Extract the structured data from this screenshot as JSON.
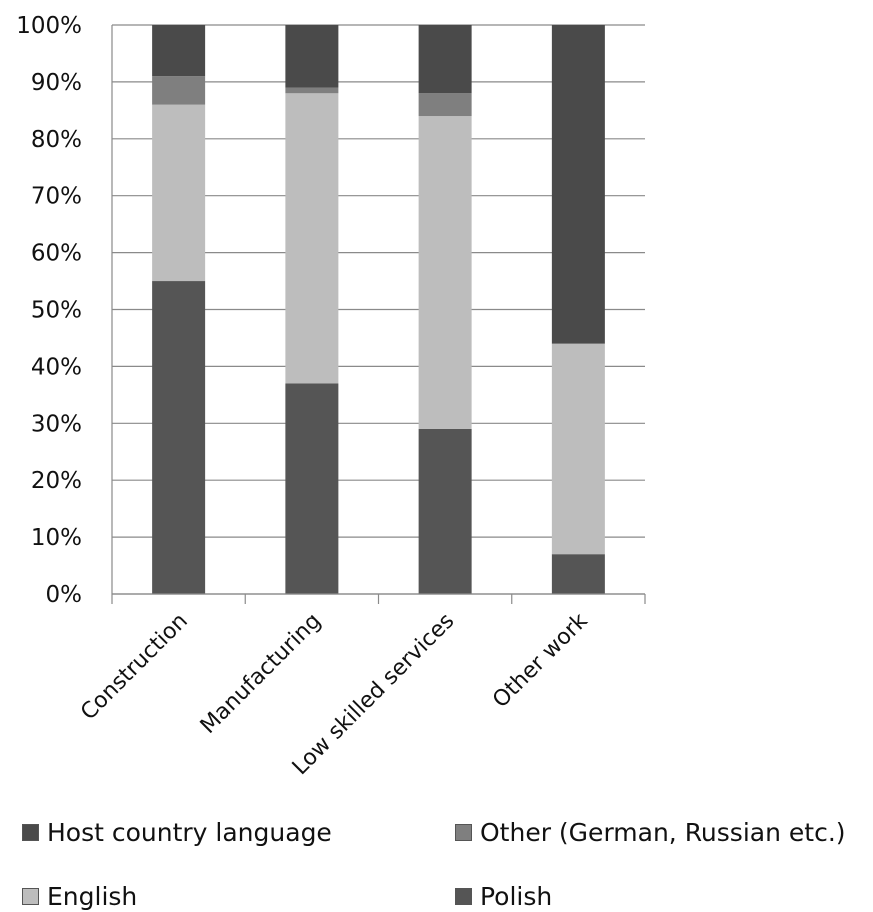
{
  "chart_data": {
    "type": "bar",
    "stacked": true,
    "orientation": "vertical",
    "categories": [
      "Construction",
      "Manufacturing",
      "Low skilled services",
      "Other work"
    ],
    "series": [
      {
        "name": "Polish",
        "values": [
          55,
          37,
          29,
          7
        ],
        "color": "#555555"
      },
      {
        "name": "English",
        "values": [
          31,
          51,
          55,
          37
        ],
        "color": "#bdbdbd"
      },
      {
        "name": "Other (German, Russian etc.)",
        "values": [
          5,
          1,
          4,
          0
        ],
        "color": "#7f7f7f"
      },
      {
        "name": "Host country language",
        "values": [
          9,
          11,
          12,
          56
        ],
        "color": "#4a4a4a"
      }
    ],
    "y_ticks": [
      "0%",
      "10%",
      "20%",
      "30%",
      "40%",
      "50%",
      "60%",
      "70%",
      "80%",
      "90%",
      "100%"
    ],
    "ylim": [
      0,
      100
    ],
    "y_unit": "%",
    "grid": true,
    "legend_position": "bottom"
  },
  "legend": {
    "items": [
      {
        "label": "Host country language",
        "color": "#4a4a4a"
      },
      {
        "label": "Other (German, Russian etc.)",
        "color": "#7f7f7f"
      },
      {
        "label": "English",
        "color": "#bdbdbd"
      },
      {
        "label": "Polish",
        "color": "#555555"
      }
    ]
  }
}
